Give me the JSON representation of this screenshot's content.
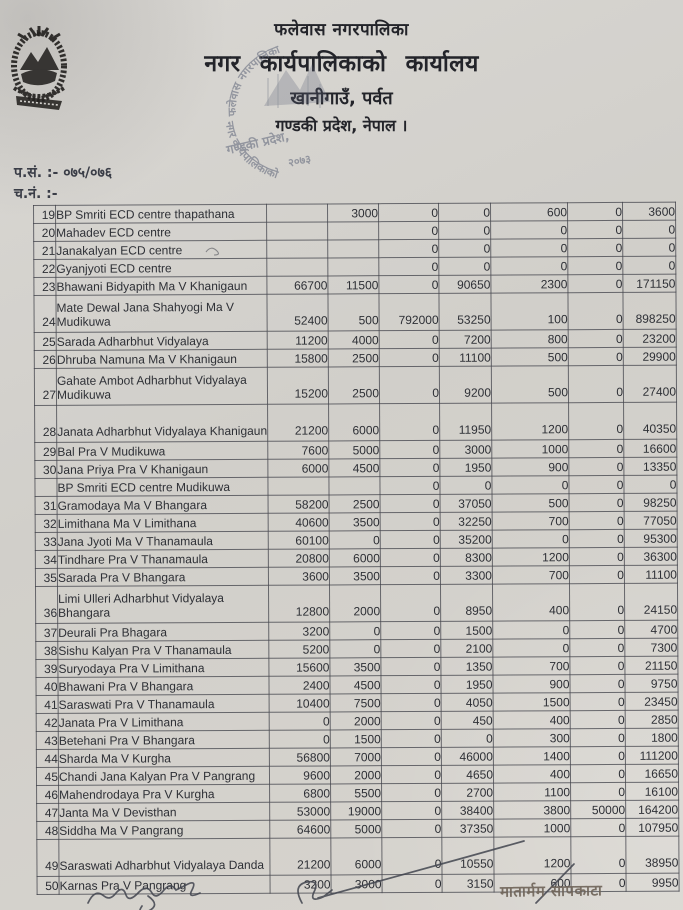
{
  "header": {
    "line1": "फलेवास नगरपालिका",
    "line2": "नगर कार्यपालिकाको कार्यालय",
    "line3": "खानीगाउँ, पर्वत",
    "line4": "गण्डकी प्रदेश, नेपाल ।",
    "ref_no": "प.सं. :- ०७५/०७६",
    "dispatch_no": "च.नं. :-"
  },
  "stamp": {
    "arc_top": "फलेवास नगरपालिका",
    "arc_bottom": "नगर कार्यपालिकाको",
    "line1": "गण्डकी प्रदेश,",
    "line2": "२०७३"
  },
  "footer": {
    "signatory": "मातार्मम सापकाटा"
  },
  "table": {
    "rows": [
      {
        "sn": "19",
        "name": "BP Smriti ECD centre thapathana",
        "tall": false,
        "values": [
          "",
          "3000",
          "0",
          "0",
          "600",
          "0",
          "3600"
        ]
      },
      {
        "sn": "20",
        "name": "Mahadev ECD centre",
        "tall": false,
        "values": [
          "",
          "",
          "0",
          "0",
          "0",
          "0",
          "0"
        ]
      },
      {
        "sn": "21",
        "name": "Janakalyan ECD centre",
        "tall": false,
        "values": [
          "",
          "",
          "0",
          "0",
          "0",
          "0",
          "0"
        ]
      },
      {
        "sn": "22",
        "name": "Gyanjyoti ECD centre",
        "tall": false,
        "values": [
          "",
          "",
          "0",
          "0",
          "0",
          "0",
          "0"
        ]
      },
      {
        "sn": "23",
        "name": "Bhawani Bidyapith Ma V Khanigaun",
        "tall": false,
        "values": [
          "66700",
          "11500",
          "0",
          "90650",
          "2300",
          "0",
          "171150"
        ]
      },
      {
        "sn": "24",
        "name": "Mate Dewal Jana Shahyogi Ma V Mudikuwa",
        "tall": true,
        "values": [
          "52400",
          "500",
          "792000",
          "53250",
          "100",
          "0",
          "898250"
        ]
      },
      {
        "sn": "25",
        "name": "Sarada Adharbhut Vidyalaya",
        "tall": false,
        "values": [
          "11200",
          "4000",
          "0",
          "7200",
          "800",
          "0",
          "23200"
        ]
      },
      {
        "sn": "26",
        "name": "Dhruba Namuna Ma V Khanigaun",
        "tall": false,
        "values": [
          "15800",
          "2500",
          "0",
          "11100",
          "500",
          "0",
          "29900"
        ]
      },
      {
        "sn": "27",
        "name": "Gahate Ambot Adharbhut Vidyalaya Mudikuwa",
        "tall": true,
        "values": [
          "15200",
          "2500",
          "0",
          "9200",
          "500",
          "0",
          "27400"
        ]
      },
      {
        "sn": "28",
        "name": "Janata Adharbhut Vidyalaya Khanigaun",
        "tall": true,
        "values": [
          "21200",
          "6000",
          "0",
          "11950",
          "1200",
          "0",
          "40350"
        ]
      },
      {
        "sn": "29",
        "name": "Bal Pra V Mudikuwa",
        "tall": false,
        "values": [
          "7600",
          "5000",
          "0",
          "3000",
          "1000",
          "0",
          "16600"
        ]
      },
      {
        "sn": "30",
        "name": "Jana Priya Pra V Khanigaun",
        "tall": false,
        "values": [
          "6000",
          "4500",
          "0",
          "1950",
          "900",
          "0",
          "13350"
        ]
      },
      {
        "sn": "",
        "name": "BP Smriti ECD centre Mudikuwa",
        "tall": false,
        "values": [
          "",
          "",
          "0",
          "0",
          "0",
          "0",
          "0"
        ]
      },
      {
        "sn": "31",
        "name": "Gramodaya Ma V Bhangara",
        "tall": false,
        "values": [
          "58200",
          "2500",
          "0",
          "37050",
          "500",
          "0",
          "98250"
        ]
      },
      {
        "sn": "32",
        "name": "Limithana Ma V Limithana",
        "tall": false,
        "values": [
          "40600",
          "3500",
          "0",
          "32250",
          "700",
          "0",
          "77050"
        ]
      },
      {
        "sn": "33",
        "name": "Jana Jyoti Ma V Thanamaula",
        "tall": false,
        "values": [
          "60100",
          "0",
          "0",
          "35200",
          "0",
          "0",
          "95300"
        ]
      },
      {
        "sn": "34",
        "name": "Tindhare Pra V Thanamaula",
        "tall": false,
        "values": [
          "20800",
          "6000",
          "0",
          "8300",
          "1200",
          "0",
          "36300"
        ]
      },
      {
        "sn": "35",
        "name": "Sarada Pra V Bhangara",
        "tall": false,
        "values": [
          "3600",
          "3500",
          "0",
          "3300",
          "700",
          "0",
          "11100"
        ]
      },
      {
        "sn": "36",
        "name": "Limi Ulleri Adharbhut Vidyalaya Bhangara",
        "tall": true,
        "values": [
          "12800",
          "2000",
          "0",
          "8950",
          "400",
          "0",
          "24150"
        ]
      },
      {
        "sn": "37",
        "name": "Deurali Pra Bhagara",
        "tall": false,
        "values": [
          "3200",
          "0",
          "0",
          "1500",
          "0",
          "0",
          "4700"
        ]
      },
      {
        "sn": "38",
        "name": "Sishu Kalyan Pra V Thanamaula",
        "tall": false,
        "values": [
          "5200",
          "0",
          "0",
          "2100",
          "0",
          "0",
          "7300"
        ]
      },
      {
        "sn": "39",
        "name": "Suryodaya Pra V Limithana",
        "tall": false,
        "values": [
          "15600",
          "3500",
          "0",
          "1350",
          "700",
          "0",
          "21150"
        ]
      },
      {
        "sn": "40",
        "name": "Bhawani Pra V Bhangara",
        "tall": false,
        "values": [
          "2400",
          "4500",
          "0",
          "1950",
          "900",
          "0",
          "9750"
        ]
      },
      {
        "sn": "41",
        "name": "Saraswati Pra V Thanamaula",
        "tall": false,
        "values": [
          "10400",
          "7500",
          "0",
          "4050",
          "1500",
          "0",
          "23450"
        ]
      },
      {
        "sn": "42",
        "name": "Janata Pra V Limithana",
        "tall": false,
        "values": [
          "0",
          "2000",
          "0",
          "450",
          "400",
          "0",
          "2850"
        ]
      },
      {
        "sn": "43",
        "name": "Betehani Pra V Bhangara",
        "tall": false,
        "values": [
          "0",
          "1500",
          "0",
          "0",
          "300",
          "0",
          "1800"
        ]
      },
      {
        "sn": "44",
        "name": "Sharda Ma V Kurgha",
        "tall": false,
        "values": [
          "56800",
          "7000",
          "0",
          "46000",
          "1400",
          "0",
          "111200"
        ]
      },
      {
        "sn": "45",
        "name": "Chandi Jana Kalyan Pra V Pangrang",
        "tall": false,
        "values": [
          "9600",
          "2000",
          "0",
          "4650",
          "400",
          "0",
          "16650"
        ]
      },
      {
        "sn": "46",
        "name": "Mahendrodaya Pra V Kurgha",
        "tall": false,
        "values": [
          "6800",
          "5500",
          "0",
          "2700",
          "1100",
          "0",
          "16100"
        ]
      },
      {
        "sn": "47",
        "name": "Janta Ma V Devisthan",
        "tall": false,
        "values": [
          "53000",
          "19000",
          "0",
          "38400",
          "3800",
          "50000",
          "164200"
        ]
      },
      {
        "sn": "48",
        "name": "Siddha Ma V Pangrang",
        "tall": false,
        "values": [
          "64600",
          "5000",
          "0",
          "37350",
          "1000",
          "0",
          "107950"
        ]
      },
      {
        "sn": "49",
        "name": "Saraswati Adharbhut Vidyalaya Danda",
        "tall": true,
        "values": [
          "21200",
          "6000",
          "0",
          "10550",
          "1200",
          "0",
          "38950"
        ]
      },
      {
        "sn": "50",
        "name": "Karnas Pra V Pangrang",
        "tall": false,
        "values": [
          "3200",
          "3000",
          "0",
          "3150",
          "600",
          "0",
          "9950"
        ]
      }
    ]
  }
}
